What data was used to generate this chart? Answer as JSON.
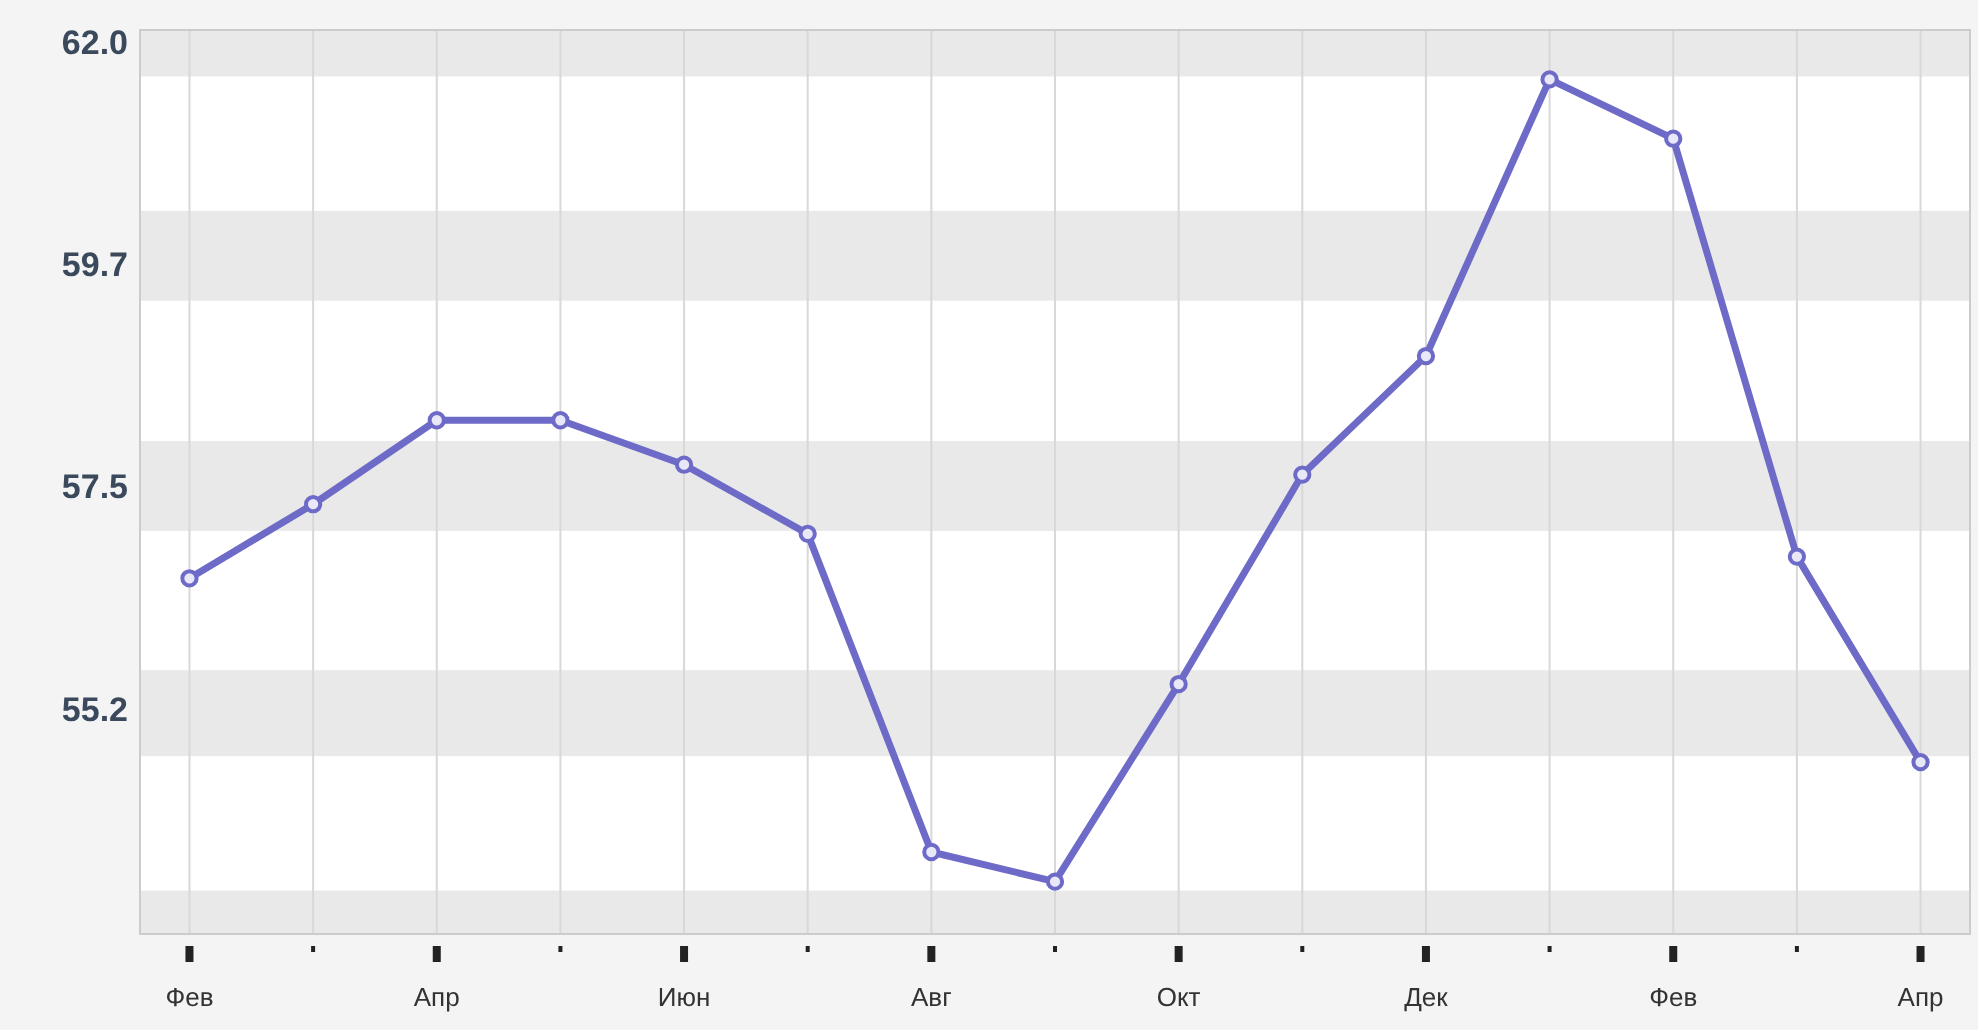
{
  "chart_data": {
    "type": "line",
    "categories": [
      "Фев",
      null,
      "Апр",
      null,
      "Июн",
      null,
      "Авг",
      null,
      "Окт",
      null,
      "Дек",
      null,
      "Фев",
      null,
      "Апр"
    ],
    "series": [
      {
        "color": "#6e6bc8",
        "values": [
          56.6,
          57.35,
          58.2,
          58.2,
          57.75,
          57.05,
          53.83,
          53.53,
          55.53,
          57.65,
          58.85,
          61.65,
          61.05,
          56.82,
          54.74
        ]
      }
    ],
    "ylim": [
      53,
      62.15
    ],
    "yticks": [
      {
        "value": 62,
        "label": "62.0"
      },
      {
        "value": 59.75,
        "label": "59.7"
      },
      {
        "value": 57.5,
        "label": "57.5"
      },
      {
        "value": 55.25,
        "label": "55.2"
      }
    ],
    "bands": [
      {
        "axis": "y",
        "from": 61.68,
        "to": 62.15,
        "color": "#e9e9e9"
      },
      {
        "axis": "y",
        "from": 59.41,
        "to": 60.32,
        "color": "#e9e9e9"
      },
      {
        "axis": "y",
        "from": 57.08,
        "to": 57.99,
        "color": "#e9e9e9"
      },
      {
        "axis": "y",
        "from": 54.8,
        "to": 55.67,
        "color": "#e9e9e9"
      },
      {
        "axis": "y",
        "from": 53,
        "to": 53.44,
        "color": "#e9e9e9"
      }
    ],
    "grid": true,
    "marker": "circle",
    "line_style": "solid"
  }
}
